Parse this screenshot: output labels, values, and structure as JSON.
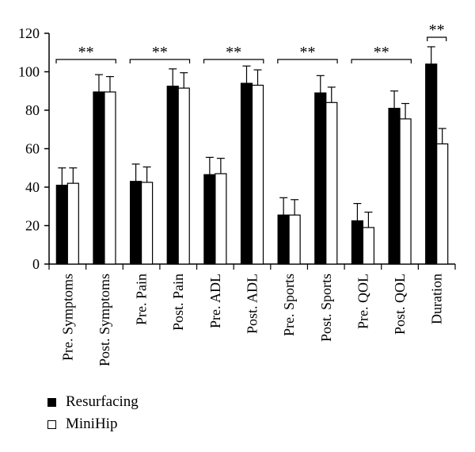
{
  "chart_data": {
    "type": "bar",
    "categories": [
      "Pre. Symptoms",
      "Post. Symptoms",
      "Pre. Pain",
      "Post. Pain",
      "Pre. ADL",
      "Post. ADL",
      "Pre. Sports",
      "Post. Sports",
      "Pre. QOL",
      "Post. QOL",
      "Duration"
    ],
    "series": [
      {
        "name": "Resurfacing",
        "color": "#000000",
        "values": [
          41,
          89.5,
          43,
          92.5,
          46.5,
          94,
          25.5,
          89,
          22.5,
          81,
          104
        ],
        "errors": [
          9,
          9,
          9,
          9,
          9,
          9,
          9,
          9,
          9,
          9,
          9
        ]
      },
      {
        "name": "MiniHip",
        "color": "#ffffff",
        "values": [
          42,
          89.5,
          42.5,
          91.5,
          47,
          93,
          25.5,
          84,
          19,
          75.5,
          62.5
        ],
        "errors": [
          8,
          8,
          8,
          8,
          8,
          8,
          8,
          8,
          8,
          8,
          8
        ]
      }
    ],
    "ylim": [
      0,
      120
    ],
    "yticks": [
      0,
      20,
      40,
      60,
      80,
      100,
      120
    ],
    "significance": [
      {
        "from": 0,
        "to": 1,
        "label": "**"
      },
      {
        "from": 2,
        "to": 3,
        "label": "**"
      },
      {
        "from": 4,
        "to": 5,
        "label": "**"
      },
      {
        "from": 6,
        "to": 7,
        "label": "**"
      },
      {
        "from": 8,
        "to": 9,
        "label": "**"
      },
      {
        "from": 10,
        "to": 10,
        "label": "**"
      }
    ],
    "legend_position": "bottom-left"
  }
}
